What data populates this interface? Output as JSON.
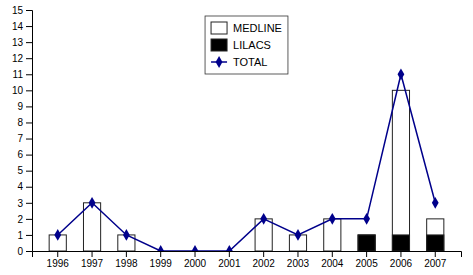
{
  "chart_data": {
    "type": "bar",
    "categories": [
      "1996",
      "1997",
      "1998",
      "1999",
      "2000",
      "2001",
      "2002",
      "2003",
      "2004",
      "2005",
      "2006",
      "2007"
    ],
    "series": [
      {
        "name": "MEDLINE",
        "type": "bar",
        "color": "white",
        "values": [
          1,
          3,
          1,
          0,
          0,
          0,
          2,
          1,
          2,
          1,
          10,
          2
        ]
      },
      {
        "name": "LILACS",
        "type": "bar",
        "color": "black",
        "values": [
          0,
          0,
          0,
          0,
          0,
          0,
          0,
          0,
          0,
          1,
          1,
          1
        ]
      },
      {
        "name": "TOTAL",
        "type": "line",
        "color": "#00008B",
        "marker": "diamond",
        "values": [
          1,
          3,
          1,
          0,
          0,
          0,
          2,
          1,
          2,
          2,
          11,
          3
        ]
      }
    ],
    "ylim": [
      0,
      15
    ],
    "yticks": [
      0,
      1,
      2,
      3,
      4,
      5,
      6,
      7,
      8,
      9,
      10,
      11,
      12,
      13,
      14,
      15
    ],
    "grid": false,
    "legend": "upper center"
  }
}
